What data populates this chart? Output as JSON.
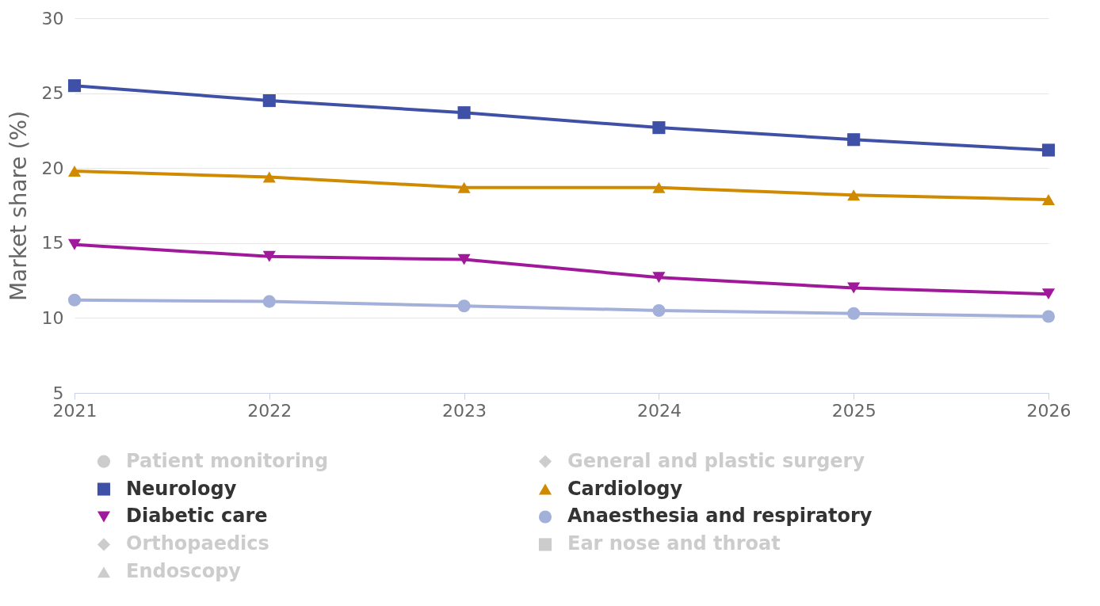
{
  "chart_data": {
    "type": "line",
    "ylabel": "Market share (%)",
    "x": [
      2021,
      2022,
      2023,
      2024,
      2025,
      2026
    ],
    "xlim": [
      2021,
      2026
    ],
    "xticks": [
      2021,
      2022,
      2023,
      2024,
      2025,
      2026
    ],
    "ylim": [
      5,
      30
    ],
    "yticks": [
      5,
      10,
      15,
      20,
      25,
      30
    ],
    "grid": "y",
    "legend": "bottom",
    "series": [
      {
        "name": "Patient monitoring",
        "color": "#cccccc",
        "marker": "circle",
        "values": [
          null,
          null,
          null,
          null,
          null,
          null
        ]
      },
      {
        "name": "General and plastic surgery",
        "color": "#cccccc",
        "marker": "diamond",
        "values": [
          null,
          null,
          null,
          null,
          null,
          null
        ]
      },
      {
        "name": "Neurology",
        "color": "#3f51a6",
        "marker": "square",
        "values": [
          25.5,
          24.5,
          23.7,
          22.7,
          21.9,
          21.2
        ]
      },
      {
        "name": "Cardiology",
        "color": "#d08a00",
        "marker": "triangle",
        "values": [
          19.8,
          19.4,
          18.7,
          18.7,
          18.2,
          17.9
        ]
      },
      {
        "name": "Diabetic care",
        "color": "#a0199a",
        "marker": "triangle-down",
        "values": [
          14.9,
          14.1,
          13.9,
          12.7,
          12.0,
          11.6
        ]
      },
      {
        "name": "Anaesthesia and respiratory",
        "color": "#a3b0d9",
        "marker": "circle",
        "values": [
          11.2,
          11.1,
          10.8,
          10.5,
          10.3,
          10.1
        ]
      },
      {
        "name": "Orthopaedics",
        "color": "#cccccc",
        "marker": "diamond",
        "values": [
          null,
          null,
          null,
          null,
          null,
          null
        ]
      },
      {
        "name": "Ear nose and throat",
        "color": "#cccccc",
        "marker": "square",
        "values": [
          null,
          null,
          null,
          null,
          null,
          null
        ]
      },
      {
        "name": "Endoscopy",
        "color": "#cccccc",
        "marker": "triangle",
        "values": [
          null,
          null,
          null,
          null,
          null,
          null
        ]
      }
    ]
  }
}
